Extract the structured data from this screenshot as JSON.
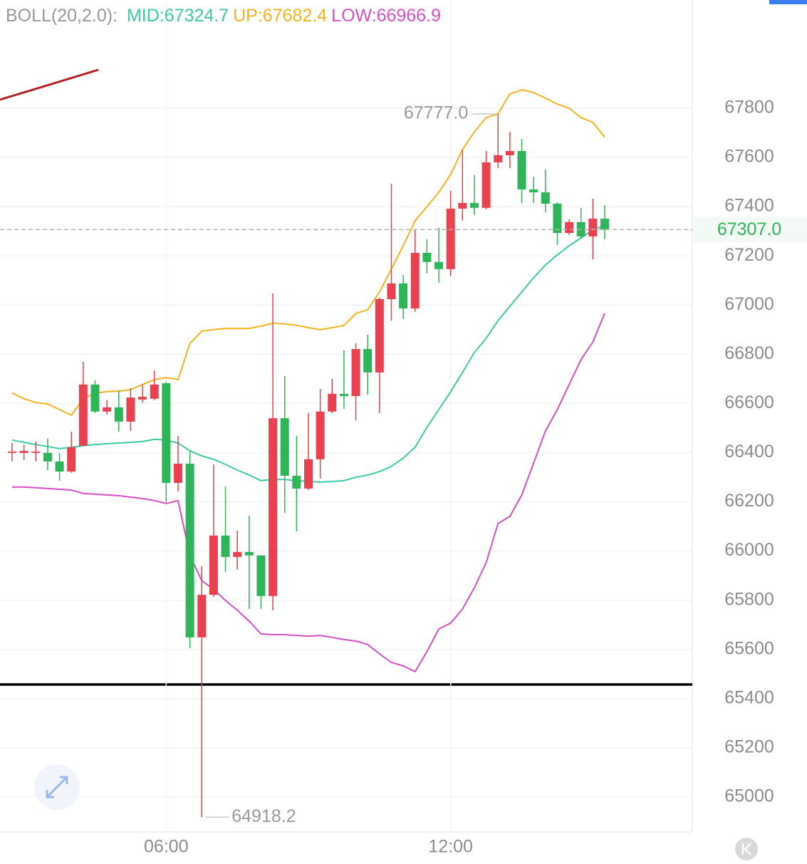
{
  "chart_data": {
    "type": "candlestick",
    "indicator": "BOLL(20,2.0):",
    "categories": [
      null,
      null,
      null,
      null,
      null,
      null,
      null,
      null,
      null,
      null,
      null,
      null,
      null,
      "06:00",
      null,
      null,
      null,
      null,
      null,
      null,
      null,
      null,
      null,
      null,
      null,
      null,
      null,
      null,
      null,
      null,
      null,
      null,
      null,
      null,
      null,
      null,
      null,
      "12:00",
      null,
      null,
      null,
      null,
      null,
      null,
      null,
      null,
      null,
      null,
      null,
      null,
      null
    ],
    "open": [
      66399,
      66399,
      66399,
      66399,
      66364,
      66323,
      66428,
      66677,
      66567,
      66584,
      66526,
      66616,
      66619,
      66682,
      66277,
      66355,
      65649,
      65822,
      66063,
      65976,
      65996,
      65982,
      65817,
      66540,
      66306,
      66254,
      66373,
      66567,
      66639,
      66630,
      66821,
      66726,
      67024,
      67088,
      66986,
      67212,
      67175,
      67146,
      67392,
      67415,
      67395,
      67580,
      67609,
      67626,
      67470,
      67458,
      67412,
      67293,
      67337,
      67279,
      67351
    ],
    "high": [
      66439,
      66433,
      66445,
      66457,
      66399,
      66485,
      66769,
      66694,
      66613,
      66653,
      66662,
      66677,
      66734,
      66688,
      66468,
      66410,
      65938,
      66352,
      66262,
      66083,
      66144,
      65982,
      67047,
      66711,
      66468,
      66561,
      66659,
      66700,
      66816,
      66844,
      66879,
      67030,
      67493,
      67122,
      67308,
      67267,
      67314,
      67464,
      67632,
      67528,
      67626,
      67777.0,
      67704,
      67675,
      67522,
      67551,
      67418,
      67348,
      67395,
      67432,
      67406
    ],
    "low": [
      66364,
      66370,
      66364,
      66329,
      66286,
      66318,
      66428,
      66561,
      66555,
      66485,
      66488,
      66604,
      66613,
      66199,
      66242,
      65605,
      64918.2,
      65814,
      65915,
      65924,
      65765,
      65765,
      65759,
      66155,
      66080,
      66248,
      66294,
      66561,
      66578,
      66532,
      66636,
      66561,
      66937,
      66943,
      66972,
      67128,
      67091,
      67117,
      67343,
      67366,
      67389,
      67557,
      67557,
      67415,
      67415,
      67377,
      67244,
      67285,
      67270,
      67186,
      67267
    ],
    "close": [
      66404,
      66407,
      66404,
      66364,
      66323,
      66422,
      66677,
      66567,
      66584,
      66526,
      66624,
      66627,
      66677,
      66277,
      66355,
      65649,
      65822,
      66063,
      65976,
      65996,
      65982,
      65817,
      66540,
      66306,
      66254,
      66373,
      66567,
      66639,
      66630,
      66821,
      66726,
      67024,
      67088,
      66986,
      67212,
      67175,
      67146,
      67392,
      67415,
      67395,
      67580,
      67609,
      67626,
      67470,
      67458,
      67412,
      67293,
      67337,
      67279,
      67351,
      67307
    ],
    "up_color": "#e8414f",
    "down_color": "#2fb45a",
    "series": [
      {
        "name": "MID:67324.7",
        "color": "#3ccaa6",
        "values": [
          66451,
          66442,
          66433,
          66425,
          66416,
          66422,
          66428,
          66433,
          66436,
          66439,
          66442,
          66445,
          66454,
          66451,
          66439,
          66407,
          66387,
          66373,
          66352,
          66329,
          66309,
          66286,
          66291,
          66291,
          66286,
          66283,
          66280,
          66283,
          66286,
          66300,
          66309,
          66323,
          66344,
          66378,
          66422,
          66503,
          66575,
          66648,
          66726,
          66807,
          66865,
          66937,
          66995,
          67053,
          67111,
          67163,
          67204,
          67241,
          67273,
          67305,
          67324.7
        ]
      },
      {
        "name": "UP:67682.4",
        "color": "#f2b521",
        "values": [
          66642,
          66619,
          66604,
          66598,
          66575,
          66552,
          66619,
          66642,
          66648,
          66650,
          66656,
          66677,
          66697,
          66705,
          66697,
          66844,
          66894,
          66900,
          66905,
          66905,
          66905,
          66914,
          66926,
          66923,
          66917,
          66908,
          66900,
          66908,
          66917,
          66966,
          66981,
          67053,
          67146,
          67241,
          67343,
          67400,
          67458,
          67531,
          67632,
          67704,
          67762,
          67777,
          67858,
          67875,
          67864,
          67841,
          67817,
          67800,
          67762,
          67742,
          67682.4
        ]
      },
      {
        "name": "LOW:66966.9",
        "color": "#d74fc4",
        "values": [
          66260,
          66260,
          66257,
          66254,
          66251,
          66248,
          66234,
          66231,
          66228,
          66225,
          66219,
          66213,
          66205,
          66193,
          66205,
          65982,
          65880,
          65843,
          65799,
          65759,
          65715,
          65663,
          65660,
          65660,
          65657,
          65654,
          65657,
          65649,
          65640,
          65634,
          65620,
          65582,
          65547,
          65533,
          65510,
          65591,
          65683,
          65707,
          65764,
          65851,
          65953,
          66112,
          66141,
          66228,
          66358,
          66488,
          66575,
          66677,
          66778,
          66850,
          66966.9
        ]
      }
    ],
    "ylim": [
      64858,
      68240
    ],
    "yticks": [
      65000,
      65200,
      65400,
      65600,
      65800,
      66000,
      66200,
      66400,
      66600,
      66800,
      67000,
      67200,
      67400,
      67600,
      67800
    ],
    "grid": true,
    "last_price": {
      "value": 67307.0,
      "label": "67307.0"
    },
    "high_label": "67777.0",
    "low_label": "64918.2"
  }
}
